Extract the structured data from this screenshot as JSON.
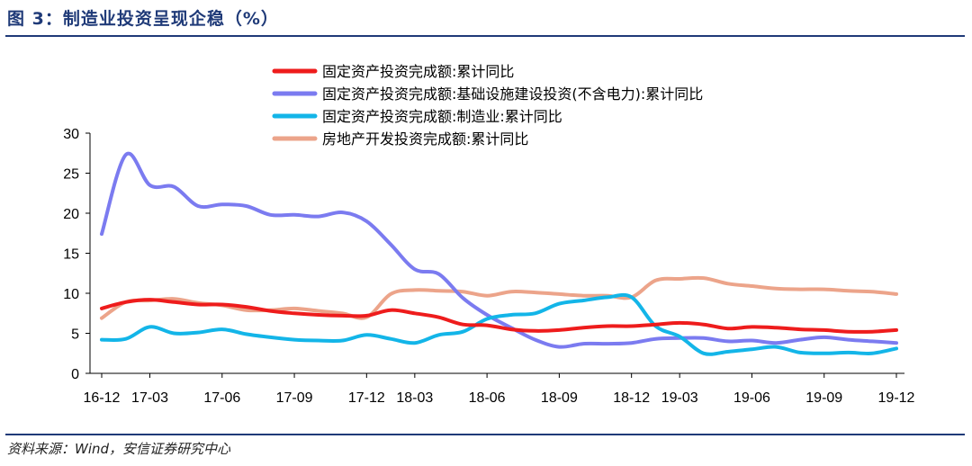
{
  "header": {
    "title": "图 3：制造业投资呈现企稳（%）"
  },
  "footer": {
    "source": "资料来源：Wind，安信证券研究中心"
  },
  "chart_data": {
    "type": "line",
    "title": "",
    "xlabel": "",
    "ylabel": "",
    "ylim": [
      0,
      30
    ],
    "yticks": [
      0,
      5,
      10,
      15,
      20,
      25,
      30
    ],
    "grid": false,
    "legend_position": "top",
    "categories": [
      "16-12",
      "17-02",
      "17-03",
      "17-04",
      "17-05",
      "17-06",
      "17-07",
      "17-08",
      "17-09",
      "17-10",
      "17-11",
      "17-12",
      "18-02",
      "18-03",
      "18-04",
      "18-05",
      "18-06",
      "18-07",
      "18-08",
      "18-09",
      "18-10",
      "18-11",
      "18-12",
      "19-02",
      "19-03",
      "19-04",
      "19-05",
      "19-06",
      "19-07",
      "19-08",
      "19-09",
      "19-10",
      "19-11",
      "19-12"
    ],
    "xtick_labels": [
      "16-12",
      "17-03",
      "17-06",
      "17-09",
      "17-12",
      "18-03",
      "18-06",
      "18-09",
      "18-12",
      "19-03",
      "19-06",
      "19-09",
      "19-12"
    ],
    "series": [
      {
        "name": "固定资产投资完成额:累计同比",
        "color": "#ee1c1c",
        "values": [
          8.1,
          8.9,
          9.2,
          8.9,
          8.6,
          8.6,
          8.3,
          7.8,
          7.5,
          7.3,
          7.2,
          7.2,
          7.9,
          7.5,
          7.0,
          6.1,
          6.0,
          5.5,
          5.3,
          5.4,
          5.7,
          5.9,
          5.9,
          6.1,
          6.3,
          6.1,
          5.6,
          5.8,
          5.7,
          5.5,
          5.4,
          5.2,
          5.2,
          5.4
        ]
      },
      {
        "name": "固定资产投资完成额:基础设施建设投资(不含电力):累计同比",
        "color": "#7b7bf0",
        "values": [
          17.4,
          27.3,
          23.5,
          23.3,
          20.9,
          21.1,
          20.9,
          19.8,
          19.8,
          19.6,
          20.1,
          19.0,
          16.1,
          13.0,
          12.4,
          9.4,
          7.3,
          5.7,
          4.2,
          3.3,
          3.7,
          3.7,
          3.8,
          4.3,
          4.4,
          4.4,
          4.0,
          4.1,
          3.8,
          4.2,
          4.5,
          4.2,
          4.0,
          3.8
        ]
      },
      {
        "name": "固定资产投资完成额:制造业:累计同比",
        "color": "#13b5e8",
        "values": [
          4.2,
          4.3,
          5.8,
          5.0,
          5.1,
          5.5,
          4.9,
          4.5,
          4.2,
          4.1,
          4.1,
          4.8,
          4.3,
          3.8,
          4.8,
          5.2,
          6.8,
          7.3,
          7.5,
          8.7,
          9.1,
          9.5,
          9.5,
          5.9,
          4.6,
          2.5,
          2.7,
          3.0,
          3.3,
          2.6,
          2.5,
          2.6,
          2.5,
          3.1
        ]
      },
      {
        "name": "房地产开发投资完成额:累计同比",
        "color": "#eca48a",
        "values": [
          6.9,
          8.9,
          9.1,
          9.3,
          8.8,
          8.5,
          7.9,
          7.9,
          8.1,
          7.8,
          7.5,
          7.0,
          9.9,
          10.4,
          10.3,
          10.2,
          9.7,
          10.2,
          10.1,
          9.9,
          9.7,
          9.7,
          9.5,
          11.6,
          11.8,
          11.9,
          11.2,
          10.9,
          10.6,
          10.5,
          10.5,
          10.3,
          10.2,
          9.9
        ]
      }
    ]
  }
}
